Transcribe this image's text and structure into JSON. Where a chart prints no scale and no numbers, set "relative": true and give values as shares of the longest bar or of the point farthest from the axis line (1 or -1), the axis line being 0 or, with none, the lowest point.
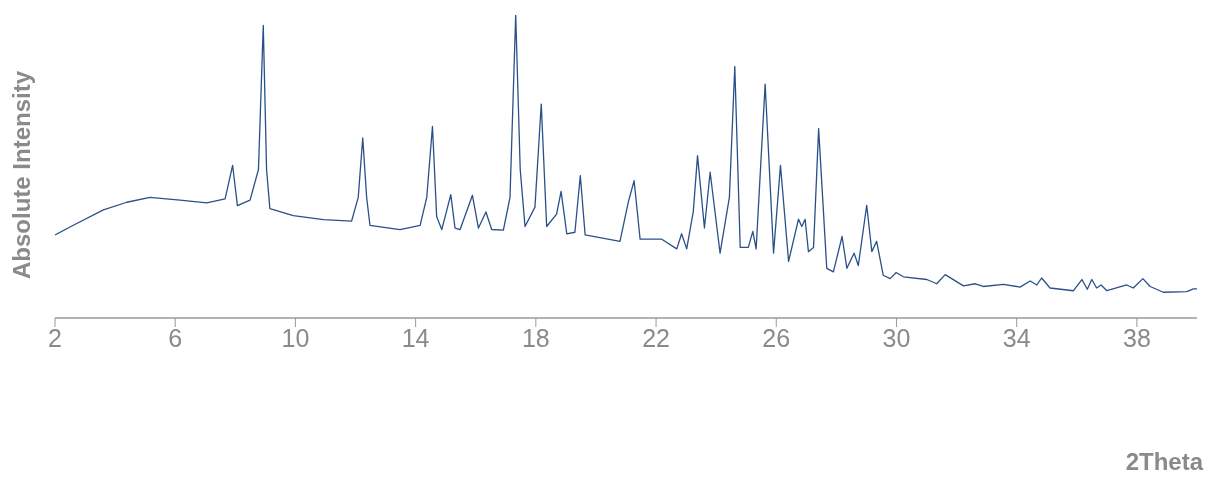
{
  "chart_data": {
    "type": "line",
    "relative": true,
    "xlabel": "2Theta",
    "ylabel": "Absolute Intensity",
    "xlim": [
      2,
      40
    ],
    "xticks": [
      2,
      6,
      10,
      14,
      18,
      22,
      26,
      30,
      34,
      38
    ],
    "x": [
      2.0,
      2.61,
      3.61,
      4.39,
      5.16,
      6.16,
      7.05,
      7.66,
      7.91,
      8.07,
      8.49,
      8.77,
      8.93,
      9.04,
      9.15,
      9.93,
      10.93,
      11.87,
      12.09,
      12.24,
      12.37,
      12.48,
      13.48,
      14.15,
      14.37,
      14.56,
      14.7,
      14.87,
      14.98,
      15.17,
      15.31,
      15.48,
      15.89,
      16.09,
      16.34,
      16.53,
      16.92,
      17.14,
      17.33,
      17.48,
      17.64,
      17.97,
      18.18,
      18.36,
      18.69,
      18.84,
      19.03,
      19.3,
      19.48,
      19.64,
      20.8,
      21.08,
      21.27,
      21.47,
      22.19,
      22.69,
      22.85,
      23.02,
      23.24,
      23.38,
      23.61,
      23.8,
      24.13,
      24.44,
      24.62,
      24.8,
      25.07,
      25.22,
      25.33,
      25.63,
      25.91,
      26.14,
      26.41,
      26.74,
      26.85,
      26.96,
      27.07,
      27.24,
      27.41,
      27.68,
      27.9,
      28.19,
      28.35,
      28.59,
      28.73,
      29.01,
      29.18,
      29.34,
      29.56,
      29.79,
      29.99,
      30.23,
      31.01,
      31.34,
      31.62,
      32.23,
      32.62,
      32.89,
      33.56,
      34.11,
      34.45,
      34.67,
      34.83,
      35.11,
      35.89,
      36.17,
      36.35,
      36.5,
      36.66,
      36.81,
      37.0,
      37.66,
      37.88,
      38.2,
      38.44,
      38.88,
      39.66,
      39.88,
      40.0
    ],
    "series": [
      {
        "color": "#2b5089",
        "values": [
          0.274,
          0.306,
          0.357,
          0.382,
          0.398,
          0.389,
          0.38,
          0.393,
          0.504,
          0.371,
          0.389,
          0.49,
          0.966,
          0.49,
          0.361,
          0.338,
          0.325,
          0.32,
          0.398,
          0.594,
          0.398,
          0.306,
          0.292,
          0.306,
          0.398,
          0.632,
          0.334,
          0.292,
          0.334,
          0.407,
          0.297,
          0.292,
          0.405,
          0.297,
          0.35,
          0.292,
          0.29,
          0.398,
          1,
          0.49,
          0.302,
          0.366,
          0.706,
          0.302,
          0.343,
          0.418,
          0.278,
          0.283,
          0.47,
          0.274,
          0.253,
          0.384,
          0.453,
          0.26,
          0.26,
          0.228,
          0.278,
          0.228,
          0.352,
          0.536,
          0.297,
          0.481,
          0.214,
          0.398,
          0.83,
          0.233,
          0.233,
          0.286,
          0.228,
          0.772,
          0.214,
          0.504,
          0.187,
          0.326,
          0.302,
          0.326,
          0.219,
          0.233,
          0.625,
          0.164,
          0.152,
          0.269,
          0.164,
          0.214,
          0.173,
          0.372,
          0.219,
          0.253,
          0.141,
          0.13,
          0.15,
          0.136,
          0.127,
          0.113,
          0.143,
          0.106,
          0.113,
          0.104,
          0.111,
          0.102,
          0.122,
          0.109,
          0.132,
          0.099,
          0.09,
          0.127,
          0.095,
          0.127,
          0.099,
          0.109,
          0.09,
          0.109,
          0.099,
          0.13,
          0.104,
          0.085,
          0.087,
          0.096,
          0.096
        ]
      }
    ]
  }
}
